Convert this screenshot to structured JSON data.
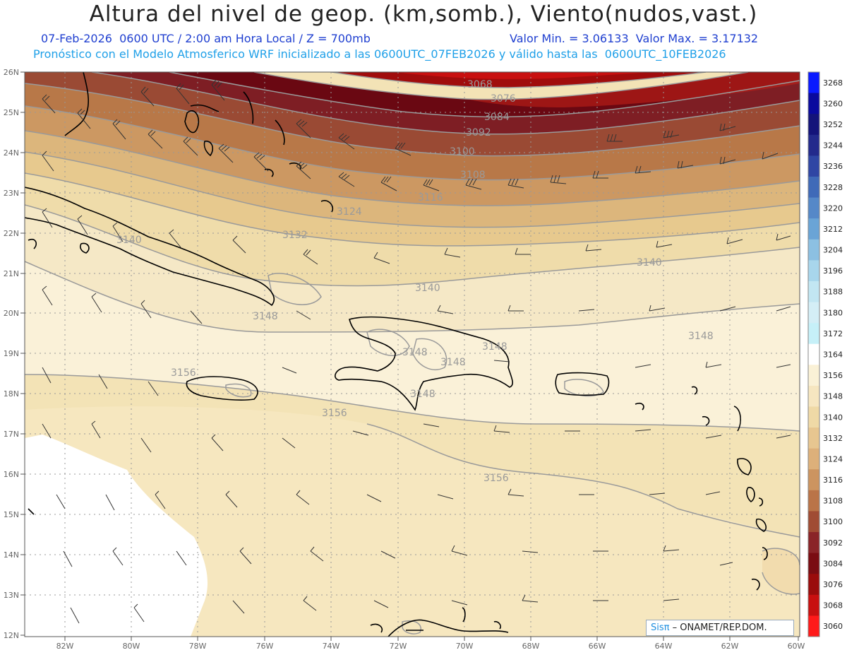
{
  "header": {
    "title": "Altura del nivel de geop. (km,somb.), Viento(nudos,vast.)",
    "date_line": "07-Feb-2026  0600 UTC / 2:00 am Hora Local / Z = 700mb",
    "minmax_line": "Valor Min. = 3.06133  Valor Max. = 3.17132",
    "model_line": "Pronóstico con el Modelo Atmosferico WRF inicializado a las 0600UTC_07FEB2026 y válido hasta las  0600UTC_10FEB2026"
  },
  "map": {
    "lat_labels": [
      "26N",
      "25N",
      "24N",
      "23N",
      "22N",
      "21N",
      "20N",
      "19N",
      "18N",
      "17N",
      "16N",
      "15N",
      "14N",
      "13N",
      "12N"
    ],
    "lon_labels": [
      "82W",
      "80W",
      "78W",
      "76W",
      "74W",
      "72W",
      "70W",
      "68W",
      "66W",
      "64W",
      "62W",
      "60W"
    ],
    "contour_labels": [
      "3068",
      "3076",
      "3084",
      "3092",
      "3100",
      "3108",
      "3116",
      "3124",
      "3132",
      "3140",
      "3140",
      "3140",
      "3148",
      "3148",
      "3148",
      "3148",
      "3148",
      "3148",
      "3156",
      "3156",
      "3156"
    ]
  },
  "colorbar": {
    "levels": [
      "3268",
      "3260",
      "3252",
      "3244",
      "3236",
      "3228",
      "3220",
      "3212",
      "3204",
      "3196",
      "3188",
      "3180",
      "3172",
      "3164",
      "3156",
      "3148",
      "3140",
      "3132",
      "3124",
      "3116",
      "3108",
      "3100",
      "3092",
      "3084",
      "3076",
      "3068",
      "3060"
    ],
    "colors": [
      "#0a1aff",
      "#0a0a9e",
      "#14147a",
      "#232a8c",
      "#2f46a4",
      "#3f6ab8",
      "#5588c8",
      "#6aa4d6",
      "#8cc0e2",
      "#a8d6ec",
      "#c2e6f2",
      "#d4eef6",
      "#c6f0f8",
      "#ffffff",
      "#faf1d6",
      "#f6e6c0",
      "#efd9a6",
      "#e7c690",
      "#ddb07a",
      "#cc9460",
      "#ba7448",
      "#a04c34",
      "#8a2428",
      "#7a0c12",
      "#9a0c0c",
      "#c81010",
      "#ff1a1a"
    ]
  },
  "credit": {
    "brand": "Sisπ",
    "org": " – ONAMET/REP.DOM."
  }
}
